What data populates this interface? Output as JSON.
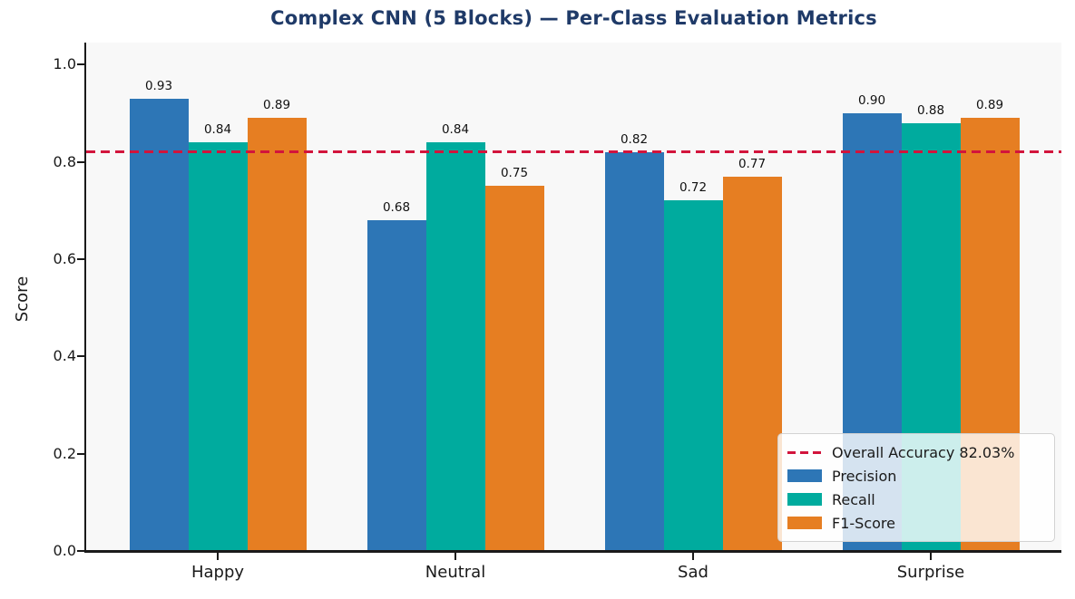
{
  "chart_data": {
    "type": "bar",
    "title": "Complex CNN (5 Blocks) — Per-Class Evaluation Metrics",
    "xlabel": "",
    "ylabel": "Score",
    "categories": [
      "Happy",
      "Neutral",
      "Sad",
      "Surprise"
    ],
    "series": [
      {
        "name": "Precision",
        "color": "#2d76b6",
        "values": [
          0.93,
          0.68,
          0.82,
          0.9
        ]
      },
      {
        "name": "Recall",
        "color": "#00ab9e",
        "values": [
          0.84,
          0.84,
          0.72,
          0.88
        ]
      },
      {
        "name": "F1-Score",
        "color": "#e67e22",
        "values": [
          0.89,
          0.75,
          0.77,
          0.89
        ]
      }
    ],
    "bar_value_labels": [
      "0.93",
      "0.84",
      "0.89",
      "0.68",
      "0.84",
      "0.75",
      "0.82",
      "0.72",
      "0.77",
      "0.90",
      "0.88",
      "0.89"
    ],
    "reference_line": {
      "value": 0.8203,
      "label": "Overall Accuracy 82.03%",
      "color": "#d2143c",
      "style": "dashed"
    },
    "ylim": [
      0.0,
      1.045
    ],
    "yticks": [
      "0.0",
      "0.2",
      "0.4",
      "0.6",
      "0.8",
      "1.0"
    ],
    "legend_position": "lower right",
    "grid": false,
    "colors": {
      "title": "#1f3a68",
      "plot_background": "#f8f8f8",
      "figure_background": "#ffffff",
      "axis": "#1a1a1a"
    }
  }
}
